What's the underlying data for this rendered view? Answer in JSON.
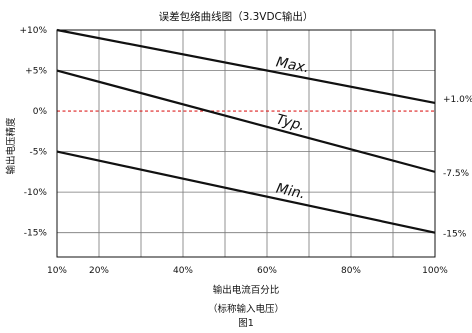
{
  "chart_data": {
    "type": "line",
    "title": "误差包络曲线图（3.3VDC输出）",
    "xlabel": "输出电流百分比",
    "xlabel_note": "（标称输入电压）",
    "figure_caption": "图1",
    "ylabel": "输出电压精度",
    "xlim": [
      10,
      100
    ],
    "ylim": [
      -18,
      10
    ],
    "grid": true,
    "x_ticks": [
      {
        "value": 10,
        "label": "10%"
      },
      {
        "value": 20,
        "label": "20%"
      },
      {
        "value": 40,
        "label": "40%"
      },
      {
        "value": 60,
        "label": "60%"
      },
      {
        "value": 80,
        "label": "80%"
      },
      {
        "value": 100,
        "label": "100%"
      }
    ],
    "y_ticks": [
      {
        "value": 10,
        "label": "+10%"
      },
      {
        "value": 5,
        "label": "+5%"
      },
      {
        "value": 0,
        "label": "0%"
      },
      {
        "value": -5,
        "label": "-5%"
      },
      {
        "value": -10,
        "label": "-10%"
      },
      {
        "value": -15,
        "label": "-15%"
      }
    ],
    "reference_line": {
      "y": 0,
      "color": "#dd2222"
    },
    "series": [
      {
        "name": "Max.",
        "x": [
          10,
          100
        ],
        "y": [
          10,
          1
        ],
        "end_label": "+1.0%",
        "label_at_x": 62
      },
      {
        "name": "Typ.",
        "x": [
          10,
          100
        ],
        "y": [
          5,
          -7.5
        ],
        "end_label": "-7.5%",
        "label_at_x": 62
      },
      {
        "name": "Min.",
        "x": [
          10,
          100
        ],
        "y": [
          -5,
          -15
        ],
        "end_label": "-15%",
        "label_at_x": 62
      }
    ]
  }
}
